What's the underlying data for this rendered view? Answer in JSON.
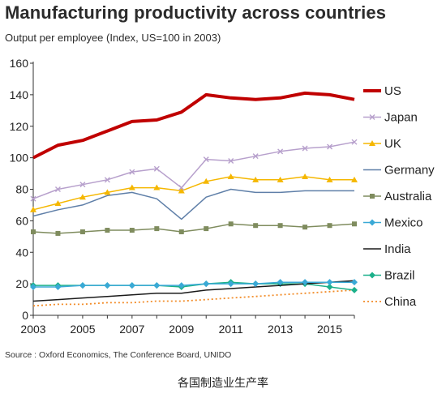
{
  "title": "Manufacturing productivity across countries",
  "subtitle": "Output per employee (Index, US=100 in 2003)",
  "source": "Source : Oxford Economics, The Conference Board, UNIDO",
  "caption": "各国制造业生产率",
  "chart_data": {
    "type": "line",
    "title": "Manufacturing productivity across countries",
    "subtitle": "Output per employee (Index, US=100 in 2003)",
    "xlabel": "",
    "ylabel": "",
    "x": [
      2003,
      2004,
      2005,
      2006,
      2007,
      2008,
      2009,
      2010,
      2011,
      2012,
      2013,
      2014,
      2015,
      2016
    ],
    "xlim": [
      2003,
      2016
    ],
    "ylim": [
      0,
      160
    ],
    "x_ticks": [
      "2003",
      "2005",
      "2007",
      "2009",
      "2011",
      "2013",
      "2015"
    ],
    "y_ticks": [
      "0",
      "20",
      "40",
      "60",
      "80",
      "100",
      "120",
      "140",
      "160"
    ],
    "grid": false,
    "legend_position": "right",
    "series": [
      {
        "name": "US",
        "color": "#c00000",
        "marker": "none",
        "width": 4,
        "dash": "none",
        "values": [
          100,
          108,
          111,
          117,
          123,
          124,
          129,
          140,
          138,
          137,
          138,
          141,
          140,
          137
        ]
      },
      {
        "name": "Japan",
        "color": "#b7a0cc",
        "marker": "x",
        "width": 1.5,
        "dash": "none",
        "values": [
          74,
          80,
          83,
          86,
          91,
          93,
          81,
          99,
          98,
          101,
          104,
          106,
          107,
          110
        ]
      },
      {
        "name": "UK",
        "color": "#f5b700",
        "marker": "triangle",
        "width": 1.5,
        "dash": "none",
        "values": [
          67,
          71,
          75,
          78,
          81,
          81,
          79,
          85,
          88,
          86,
          86,
          88,
          86,
          86
        ]
      },
      {
        "name": "Germany",
        "color": "#5f7fa8",
        "marker": "none",
        "width": 1.5,
        "dash": "none",
        "values": [
          63,
          67,
          70,
          76,
          78,
          74,
          61,
          75,
          80,
          78,
          78,
          79,
          79,
          79
        ]
      },
      {
        "name": "Australia",
        "color": "#7f8c5e",
        "marker": "square",
        "width": 1.5,
        "dash": "none",
        "values": [
          53,
          52,
          53,
          54,
          54,
          55,
          53,
          55,
          58,
          57,
          57,
          56,
          57,
          58
        ]
      },
      {
        "name": "Mexico",
        "color": "#3aa9d6",
        "marker": "diamond",
        "width": 1.5,
        "dash": "none",
        "values": [
          18,
          18,
          19,
          19,
          19,
          19,
          19,
          20,
          20,
          20,
          21,
          21,
          21,
          21
        ]
      },
      {
        "name": "India",
        "color": "#1a1a1a",
        "marker": "none",
        "width": 1.5,
        "dash": "none",
        "values": [
          9,
          10,
          11,
          12,
          13,
          14,
          14,
          16,
          17,
          18,
          19,
          20,
          21,
          22
        ]
      },
      {
        "name": "Brazil",
        "color": "#1bb08a",
        "marker": "diamond",
        "width": 1.5,
        "dash": "none",
        "values": [
          19,
          19,
          19,
          19,
          19,
          19,
          18,
          20,
          21,
          20,
          20,
          20,
          18,
          16
        ]
      },
      {
        "name": "China",
        "color": "#f28c28",
        "marker": "none",
        "width": 1.8,
        "dash": "2,3",
        "values": [
          6,
          7,
          7,
          8,
          8,
          9,
          9,
          10,
          11,
          12,
          13,
          14,
          15,
          16
        ]
      }
    ]
  }
}
